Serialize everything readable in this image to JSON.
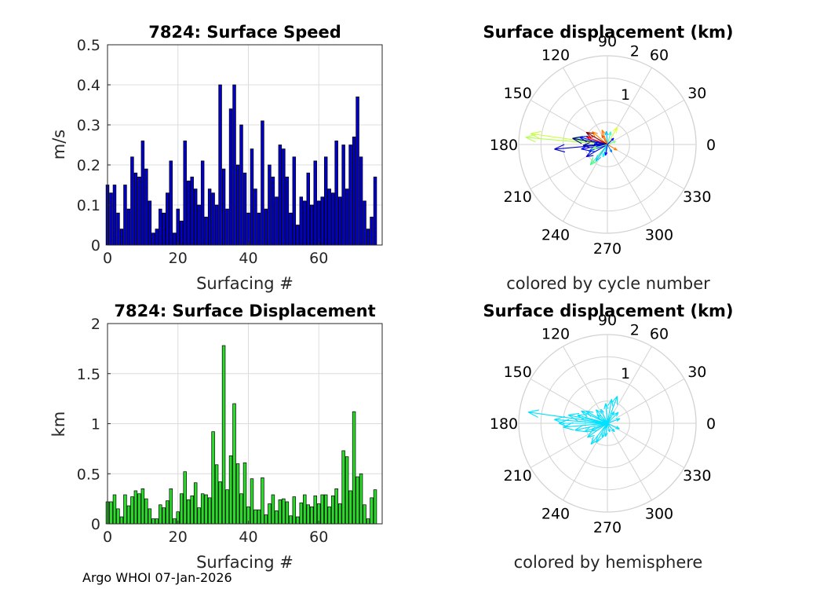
{
  "chart_data": [
    {
      "id": "speed",
      "type": "bar",
      "title": "7824: Surface Speed",
      "xlabel": "Surfacing #",
      "ylabel": "m/s",
      "xlim": [
        0,
        78
      ],
      "ylim": [
        0,
        0.5
      ],
      "xticks": [
        "0",
        "20",
        "40",
        "60"
      ],
      "yticks": [
        "0",
        "0.1",
        "0.2",
        "0.3",
        "0.4",
        "0.5"
      ],
      "grid": true,
      "color": "#0000c8",
      "values": [
        0.15,
        0.13,
        0.15,
        0.08,
        0.04,
        0.15,
        0.09,
        0.22,
        0.18,
        0.17,
        0.26,
        0.19,
        0.11,
        0.03,
        0.04,
        0.09,
        0.08,
        0.13,
        0.21,
        0.03,
        0.09,
        0.06,
        0.26,
        0.16,
        0.17,
        0.14,
        0.1,
        0.21,
        0.07,
        0.14,
        0.13,
        0.1,
        0.4,
        0.19,
        0.09,
        0.34,
        0.4,
        0.2,
        0.3,
        0.18,
        0.08,
        0.24,
        0.14,
        0.08,
        0.31,
        0.09,
        0.2,
        0.17,
        0.12,
        0.25,
        0.24,
        0.17,
        0.08,
        0.22,
        0.05,
        0.12,
        0.11,
        0.18,
        0.1,
        0.21,
        0.11,
        0.12,
        0.22,
        0.14,
        0.13,
        0.26,
        0.12,
        0.25,
        0.14,
        0.25,
        0.27,
        0.37,
        0.22,
        0.11,
        0.04,
        0.07,
        0.17
      ]
    },
    {
      "id": "displacement",
      "type": "bar",
      "title": "7824: Surface Displacement",
      "xlabel": "Surfacing #",
      "ylabel": "km",
      "xlim": [
        0,
        78
      ],
      "ylim": [
        0,
        2
      ],
      "xticks": [
        "0",
        "20",
        "40",
        "60"
      ],
      "yticks": [
        "0",
        "0.5",
        "1",
        "1.5",
        "2"
      ],
      "grid": true,
      "color": "#28dc28",
      "values": [
        0.22,
        0.22,
        0.29,
        0.15,
        0.07,
        0.29,
        0.18,
        0.27,
        0.33,
        0.3,
        0.35,
        0.25,
        0.15,
        0.05,
        0.05,
        0.19,
        0.16,
        0.23,
        0.35,
        0.05,
        0.12,
        0.3,
        0.52,
        0.24,
        0.28,
        0.41,
        0.16,
        0.3,
        0.29,
        0.26,
        0.92,
        0.59,
        0.42,
        1.78,
        0.34,
        0.68,
        1.2,
        0.6,
        0.3,
        0.61,
        0.17,
        0.45,
        0.14,
        0.14,
        0.46,
        0.09,
        0.2,
        0.29,
        0.13,
        0.24,
        0.25,
        0.22,
        0.08,
        0.27,
        0.07,
        0.21,
        0.29,
        0.19,
        0.17,
        0.28,
        0.2,
        0.29,
        0.29,
        0.17,
        0.28,
        0.35,
        0.2,
        0.73,
        0.67,
        0.33,
        1.12,
        0.47,
        0.5,
        0.19,
        0.05,
        0.26,
        0.34
      ]
    },
    {
      "id": "polar-cycle",
      "type": "polar-vectors",
      "title": "Surface displacement (km)",
      "caption": "colored by cycle number",
      "rmax": 2,
      "rticks": [
        "1",
        "2"
      ],
      "angle_ticks": [
        "0",
        "30",
        "60",
        "90",
        "120",
        "150",
        "180",
        "210",
        "240",
        "270",
        "300",
        "330"
      ],
      "colormap": [
        "#00008f",
        "#0000ff",
        "#0080ff",
        "#00ffff",
        "#80ff80",
        "#ffff00",
        "#ff8000",
        "#ff0000",
        "#800000"
      ],
      "vectors": [
        {
          "angle": 175,
          "length": 1.85,
          "color": "#b4ff50"
        },
        {
          "angle": 172,
          "length": 1.75,
          "color": "#c8ff3c"
        },
        {
          "angle": 168,
          "length": 0.75,
          "color": "#80ff80"
        },
        {
          "angle": 185,
          "length": 1.2,
          "color": "#0000c8"
        },
        {
          "angle": 182,
          "length": 0.55,
          "color": "#000090"
        },
        {
          "angle": 178,
          "length": 0.3,
          "color": "#0000ff"
        },
        {
          "angle": 190,
          "length": 0.6,
          "color": "#0000ff"
        },
        {
          "angle": 200,
          "length": 0.45,
          "color": "#0040ff"
        },
        {
          "angle": 210,
          "length": 0.55,
          "color": "#0000c8"
        },
        {
          "angle": 230,
          "length": 0.6,
          "color": "#40ff80"
        },
        {
          "angle": 235,
          "length": 0.45,
          "color": "#00c0ff"
        },
        {
          "angle": 60,
          "length": 0.45,
          "color": "#e0ff40"
        },
        {
          "angle": 75,
          "length": 0.3,
          "color": "#40ffc0"
        },
        {
          "angle": 95,
          "length": 0.3,
          "color": "#00c0ff"
        },
        {
          "angle": 110,
          "length": 0.35,
          "color": "#ff8000"
        },
        {
          "angle": 120,
          "length": 0.25,
          "color": "#ff5000"
        },
        {
          "angle": 140,
          "length": 0.45,
          "color": "#ff8000"
        },
        {
          "angle": 150,
          "length": 0.55,
          "color": "#800000"
        },
        {
          "angle": 160,
          "length": 0.5,
          "color": "#ff0000"
        },
        {
          "angle": 165,
          "length": 0.65,
          "color": "#0000ff"
        },
        {
          "angle": 170,
          "length": 0.8,
          "color": "#00008f"
        },
        {
          "angle": 195,
          "length": 0.35,
          "color": "#80ff80"
        },
        {
          "angle": 330,
          "length": 0.25,
          "color": "#ff8000"
        },
        {
          "angle": 300,
          "length": 0.2,
          "color": "#0080ff"
        },
        {
          "angle": 20,
          "length": 0.2,
          "color": "#80ff80"
        },
        {
          "angle": 250,
          "length": 0.3,
          "color": "#00ffff"
        },
        {
          "angle": 260,
          "length": 0.25,
          "color": "#0000ff"
        },
        {
          "angle": 45,
          "length": 0.2,
          "color": "#0000ff"
        }
      ]
    },
    {
      "id": "polar-hemisphere",
      "type": "polar-vectors",
      "title": "Surface displacement (km)",
      "caption": "colored by hemisphere",
      "rmax": 2,
      "rticks": [
        "1",
        "2"
      ],
      "angle_ticks": [
        "0",
        "30",
        "60",
        "90",
        "120",
        "150",
        "180",
        "210",
        "240",
        "270",
        "300",
        "330"
      ],
      "color": "#00e0ff",
      "vectors": [
        {
          "angle": 172,
          "length": 1.8
        },
        {
          "angle": 176,
          "length": 1.2
        },
        {
          "angle": 180,
          "length": 1.1
        },
        {
          "angle": 185,
          "length": 1.0
        },
        {
          "angle": 168,
          "length": 0.9
        },
        {
          "angle": 165,
          "length": 0.7
        },
        {
          "angle": 192,
          "length": 0.75
        },
        {
          "angle": 200,
          "length": 0.55
        },
        {
          "angle": 215,
          "length": 0.55
        },
        {
          "angle": 232,
          "length": 0.6
        },
        {
          "angle": 240,
          "length": 0.5
        },
        {
          "angle": 250,
          "length": 0.35
        },
        {
          "angle": 262,
          "length": 0.3
        },
        {
          "angle": 70,
          "length": 0.65
        },
        {
          "angle": 80,
          "length": 0.55
        },
        {
          "angle": 95,
          "length": 0.45
        },
        {
          "angle": 115,
          "length": 0.35
        },
        {
          "angle": 130,
          "length": 0.4
        },
        {
          "angle": 150,
          "length": 0.55
        },
        {
          "angle": 155,
          "length": 0.65
        },
        {
          "angle": 45,
          "length": 0.35
        },
        {
          "angle": 60,
          "length": 0.3
        },
        {
          "angle": 20,
          "length": 0.3
        },
        {
          "angle": 335,
          "length": 0.3
        },
        {
          "angle": 310,
          "length": 0.25
        },
        {
          "angle": 285,
          "length": 0.2
        },
        {
          "angle": 205,
          "length": 0.4
        },
        {
          "angle": 140,
          "length": 0.3
        }
      ]
    }
  ],
  "footer": "Argo WHOI 07-Jan-2026"
}
